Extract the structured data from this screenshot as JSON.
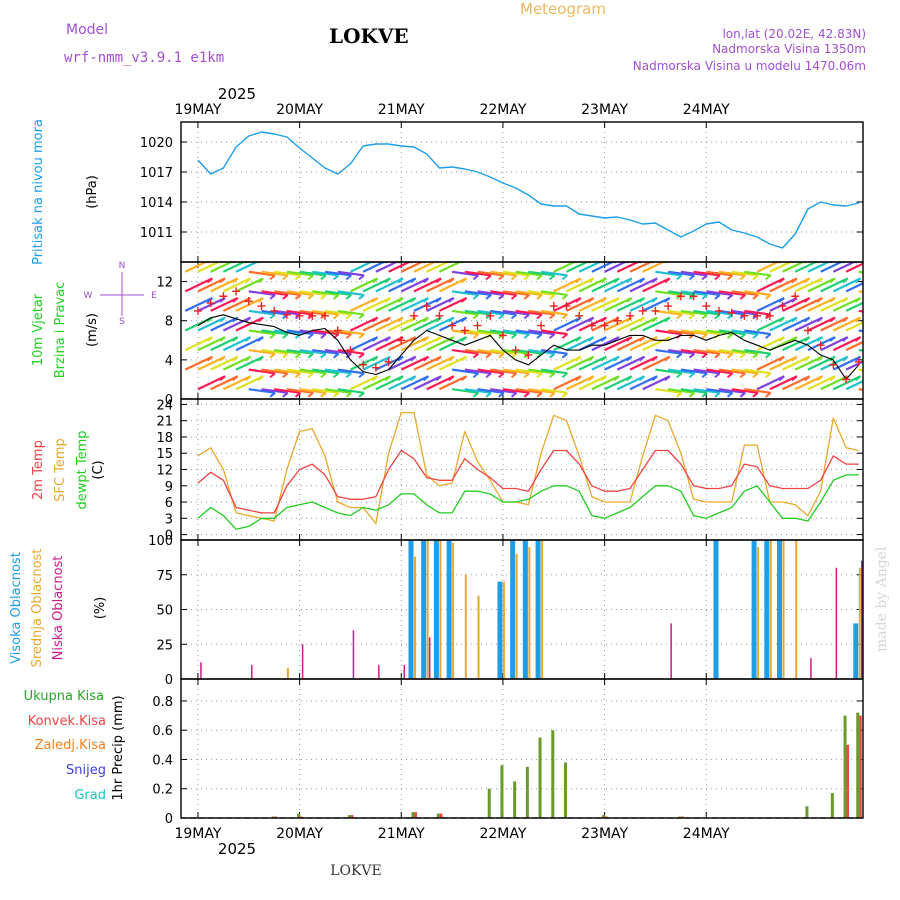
{
  "header": {
    "model_label": "Model",
    "model_name": "wrf-nmm_v3.9.1  e1km",
    "station": "LOKVE",
    "title": "Meteogram",
    "location": "lon,lat (20.02E, 42.83N)",
    "elevation": "Nadmorska Visina 1350m",
    "model_elevation": "Nadmorska Visina u modelu 1470.06m",
    "watermark": "made by Angel",
    "footer_station": "LOKVE",
    "year": "2025"
  },
  "colors": {
    "pressure": "#1e9ee8",
    "temp2m": "#ee4444",
    "sfc": "#e8a830",
    "dewpt": "#22cc22",
    "high_cloud": "#1e9ee8",
    "mid_cloud": "#e8a830",
    "low_cloud": "#cc1a8a",
    "total_precip": "#6a9a2a",
    "conv_precip": "#ee4444",
    "frozen": "#f08020",
    "snow": "#4040dd",
    "grad": "#20c0c0",
    "wind_gust": "#ee2222",
    "model_label": "#a050d0"
  },
  "chart_data": [
    {
      "type": "line",
      "panel": "pressure",
      "ylabel": [
        "Pritisak na nivou mora",
        "(hPa)"
      ],
      "unit": "hPa",
      "yticks": [
        1011,
        1014,
        1017,
        1020
      ],
      "ylim": [
        1008,
        1022
      ],
      "x_days": [
        "19MAY",
        "20MAY",
        "21MAY",
        "22MAY",
        "23MAY",
        "24MAY"
      ],
      "x_hours": [
        0,
        3,
        6,
        9,
        12,
        15,
        18,
        21,
        24,
        27,
        30,
        33,
        36,
        39,
        42,
        45,
        48,
        51,
        54,
        57,
        60,
        63,
        66,
        69,
        72,
        75,
        78,
        81,
        84,
        87,
        90,
        93,
        96,
        99,
        102,
        105,
        108,
        111,
        114,
        117,
        120,
        123,
        126,
        129,
        132,
        135,
        138,
        141,
        144,
        147,
        150,
        153,
        156
      ],
      "series": [
        {
          "values": [
            1018.2,
            1016.8,
            1017.4,
            1019.5,
            1020.6,
            1021.0,
            1020.8,
            1020.5,
            1019.4,
            1018.4,
            1017.4,
            1016.8,
            1017.8,
            1019.6,
            1019.8,
            1019.8,
            1019.6,
            1019.5,
            1018.8,
            1017.4,
            1017.5,
            1017.3,
            1017.0,
            1016.5,
            1015.9,
            1015.4,
            1014.7,
            1013.8,
            1013.6,
            1013.6,
            1012.8,
            1012.6,
            1012.4,
            1012.5,
            1012.2,
            1011.8,
            1011.9,
            1011.2,
            1010.5,
            1011.1,
            1011.8,
            1012.0,
            1011.2,
            1010.9,
            1010.5,
            1009.8,
            1009.4,
            1010.8,
            1013.3,
            1014.0,
            1013.7,
            1013.6,
            1013.9
          ]
        }
      ]
    },
    {
      "type": "line",
      "panel": "wind",
      "ylabel": [
        "10m Vjetar",
        "Brzina i Pravac",
        "(m/s)"
      ],
      "unit": "m/s",
      "yticks": [
        0,
        4,
        8,
        12
      ],
      "ylim": [
        0,
        14
      ],
      "compass": [
        "N",
        "W",
        "E",
        "S"
      ],
      "x_hours": [
        0,
        3,
        6,
        9,
        12,
        15,
        18,
        21,
        24,
        27,
        30,
        33,
        36,
        39,
        42,
        45,
        48,
        51,
        54,
        57,
        60,
        63,
        66,
        69,
        72,
        75,
        78,
        81,
        84,
        87,
        90,
        93,
        96,
        99,
        102,
        105,
        108,
        111,
        114,
        117,
        120,
        123,
        126,
        129,
        132,
        135,
        138,
        141,
        144,
        147,
        150,
        153,
        156
      ],
      "series": [
        {
          "name": "speed",
          "values": [
            7.5,
            8.3,
            8.6,
            8.2,
            7.8,
            7.6,
            7.4,
            6.8,
            6.5,
            7.0,
            7.2,
            6.0,
            4.0,
            2.8,
            2.5,
            3.0,
            4.5,
            6.0,
            7.0,
            6.5,
            6.0,
            5.5,
            6.0,
            6.5,
            5.0,
            4.0,
            3.5,
            4.5,
            5.5,
            5.0,
            5.0,
            5.5,
            5.5,
            6.0,
            6.5,
            6.5,
            6.0,
            6.0,
            6.5,
            6.5,
            6.0,
            6.5,
            6.8,
            6.0,
            5.5,
            5.0,
            5.5,
            6.0,
            5.5,
            4.5,
            4.0,
            2.0,
            3.5
          ]
        },
        {
          "name": "gust",
          "values": [
            9.0,
            9.8,
            10.5,
            11.0,
            10.0,
            9.5,
            9.0,
            8.6,
            8.5,
            8.5,
            8.5,
            7.0,
            5.0,
            3.5,
            3.2,
            3.8,
            6.0,
            8.5,
            9.5,
            8.5,
            7.5,
            7.0,
            7.5,
            8.5,
            6.5,
            5.0,
            4.5,
            7.5,
            9.5,
            9.5,
            8.5,
            7.5,
            7.5,
            8.0,
            8.5,
            9.0,
            9.0,
            9.5,
            10.5,
            10.5,
            9.5,
            9.0,
            8.8,
            8.5,
            8.5,
            8.5,
            9.5,
            10.5,
            7.0,
            5.5,
            3.5,
            2.0,
            3.8
          ]
        }
      ]
    },
    {
      "type": "line",
      "panel": "temperature",
      "ylabel": [
        "2m Temp",
        "SFC Temp",
        "dewpt Temp",
        "(C)"
      ],
      "unit": "C",
      "yticks": [
        0,
        3,
        6,
        9,
        12,
        15,
        18,
        21,
        24
      ],
      "ylim": [
        -1,
        25
      ],
      "x_hours": [
        0,
        3,
        6,
        9,
        12,
        15,
        18,
        21,
        24,
        27,
        30,
        33,
        36,
        39,
        42,
        45,
        48,
        51,
        54,
        57,
        60,
        63,
        66,
        69,
        72,
        75,
        78,
        81,
        84,
        87,
        90,
        93,
        96,
        99,
        102,
        105,
        108,
        111,
        114,
        117,
        120,
        123,
        126,
        129,
        132,
        135,
        138,
        141,
        144,
        147,
        150,
        153,
        156
      ],
      "series": [
        {
          "name": "2m Temp",
          "values": [
            9.5,
            11.5,
            10.0,
            5.0,
            4.5,
            4.0,
            4.0,
            9.0,
            12.0,
            13.0,
            11.0,
            7.0,
            6.5,
            6.5,
            7.0,
            12.0,
            15.5,
            14.0,
            10.5,
            10.0,
            10.0,
            14.0,
            12.0,
            10.5,
            8.5,
            8.5,
            8.0,
            12.0,
            15.5,
            15.5,
            13.0,
            9.0,
            8.0,
            8.0,
            8.5,
            12.0,
            15.5,
            15.5,
            13.0,
            9.0,
            8.5,
            8.5,
            9.0,
            13.0,
            12.5,
            9.0,
            8.5,
            8.5,
            8.5,
            10.0,
            14.5,
            13.0,
            13.0
          ]
        },
        {
          "name": "SFC Temp",
          "values": [
            14.5,
            16.0,
            12.0,
            4.0,
            3.5,
            3.0,
            2.5,
            12.0,
            19.0,
            19.5,
            14.5,
            6.0,
            5.0,
            5.0,
            2.0,
            15.0,
            22.5,
            22.5,
            11.0,
            9.0,
            9.5,
            19.0,
            13.5,
            10.0,
            6.0,
            6.0,
            5.5,
            15.0,
            22.0,
            21.0,
            14.5,
            7.0,
            6.0,
            6.0,
            6.0,
            14.5,
            22.0,
            21.0,
            15.0,
            6.5,
            6.0,
            6.0,
            6.0,
            16.5,
            16.5,
            6.0,
            6.0,
            5.5,
            3.5,
            8.0,
            21.5,
            16.0,
            15.5
          ]
        },
        {
          "name": "dewpt Temp",
          "values": [
            3.0,
            5.0,
            3.5,
            1.0,
            1.5,
            3.0,
            3.0,
            5.0,
            5.5,
            6.0,
            5.0,
            4.0,
            3.5,
            5.0,
            4.5,
            5.5,
            7.5,
            7.5,
            5.5,
            4.0,
            4.0,
            8.0,
            8.0,
            7.5,
            6.0,
            6.0,
            6.5,
            8.0,
            9.0,
            9.0,
            8.0,
            3.5,
            3.0,
            4.0,
            5.0,
            7.0,
            9.0,
            9.0,
            8.0,
            3.5,
            3.0,
            4.0,
            5.0,
            8.0,
            9.0,
            6.0,
            3.0,
            3.0,
            2.5,
            6.0,
            10.0,
            11.0,
            11.0
          ]
        }
      ]
    },
    {
      "type": "bar",
      "panel": "clouds",
      "ylabel": [
        "Visoka Oblacnost",
        "Srednja Oblacnost",
        "Niska Oblacnost",
        "(%)"
      ],
      "unit": "%",
      "yticks": [
        0,
        25,
        50,
        75,
        100
      ],
      "ylim": [
        0,
        100
      ],
      "x_hours": [
        0,
        3,
        6,
        9,
        12,
        15,
        18,
        21,
        24,
        27,
        30,
        33,
        36,
        39,
        42,
        45,
        48,
        51,
        54,
        57,
        60,
        63,
        66,
        69,
        72,
        75,
        78,
        81,
        84,
        87,
        90,
        93,
        96,
        99,
        102,
        105,
        108,
        111,
        114,
        117,
        120,
        123,
        126,
        129,
        132,
        135,
        138,
        141,
        144,
        147,
        150,
        153,
        156
      ],
      "series": [
        {
          "name": "Visoka Oblacnost",
          "values": [
            0,
            0,
            0,
            0,
            0,
            0,
            0,
            0,
            0,
            0,
            0,
            0,
            0,
            0,
            0,
            0,
            0,
            100,
            100,
            100,
            100,
            0,
            0,
            0,
            70,
            100,
            100,
            100,
            0,
            0,
            0,
            0,
            0,
            0,
            0,
            0,
            0,
            0,
            0,
            0,
            0,
            100,
            0,
            0,
            100,
            100,
            100,
            0,
            0,
            0,
            0,
            0,
            40
          ]
        },
        {
          "name": "Srednja Oblacnost",
          "values": [
            0,
            0,
            0,
            0,
            0,
            0,
            0,
            8,
            0,
            0,
            0,
            0,
            0,
            0,
            0,
            0,
            0,
            88,
            100,
            100,
            98,
            75,
            60,
            0,
            70,
            90,
            95,
            100,
            0,
            0,
            0,
            0,
            0,
            0,
            0,
            0,
            0,
            0,
            0,
            0,
            0,
            0,
            0,
            0,
            95,
            100,
            100,
            100,
            0,
            0,
            0,
            0,
            80
          ]
        },
        {
          "name": "Niska Oblacnost",
          "values": [
            12,
            0,
            0,
            0,
            10,
            0,
            0,
            0,
            25,
            0,
            0,
            0,
            35,
            0,
            10,
            0,
            10,
            0,
            30,
            0,
            0,
            0,
            0,
            0,
            0,
            0,
            0,
            0,
            0,
            0,
            0,
            0,
            0,
            0,
            0,
            0,
            0,
            40,
            0,
            0,
            0,
            0,
            0,
            0,
            0,
            0,
            0,
            0,
            15,
            0,
            80,
            0,
            85
          ]
        }
      ]
    },
    {
      "type": "bar",
      "panel": "precipitation",
      "ylabel": [
        "1hr Precip (mm)"
      ],
      "unit": "mm",
      "legend": [
        "Ukupna Kisa",
        "Konvek.Kisa",
        "Zaledj.Kisa",
        "Snijeg",
        "Grad"
      ],
      "yticks": [
        0,
        0.2,
        0.4,
        0.6,
        0.8
      ],
      "ylim": [
        0,
        0.95
      ],
      "x_hours": [
        0,
        3,
        6,
        9,
        12,
        15,
        18,
        21,
        24,
        27,
        30,
        33,
        36,
        39,
        42,
        45,
        48,
        51,
        54,
        57,
        60,
        63,
        66,
        69,
        72,
        75,
        78,
        81,
        84,
        87,
        90,
        93,
        96,
        99,
        102,
        105,
        108,
        111,
        114,
        117,
        120,
        123,
        126,
        129,
        132,
        135,
        138,
        141,
        144,
        147,
        150,
        153,
        156
      ],
      "series": [
        {
          "name": "Ukupna Kisa",
          "values": [
            0,
            0,
            0,
            0,
            0,
            0,
            0.01,
            0,
            0.03,
            0,
            0,
            0,
            0.02,
            0,
            0,
            0,
            0,
            0.04,
            0,
            0.03,
            0,
            0,
            0,
            0.2,
            0.36,
            0.25,
            0.35,
            0.55,
            0.6,
            0.38,
            0,
            0,
            0.02,
            0,
            0,
            0,
            0,
            0,
            0.01,
            0,
            0,
            0,
            0,
            0,
            0,
            0,
            0,
            0,
            0.08,
            0,
            0.17,
            0.7,
            0.72
          ]
        },
        {
          "name": "Konvek.Kisa",
          "values": [
            0,
            0,
            0,
            0,
            0,
            0,
            0.01,
            0,
            0.01,
            0,
            0,
            0,
            0.02,
            0,
            0,
            0,
            0,
            0.04,
            0,
            0.03,
            0,
            0,
            0,
            0,
            0,
            0,
            0,
            0,
            0,
            0,
            0,
            0,
            0.01,
            0,
            0,
            0,
            0,
            0,
            0.01,
            0,
            0,
            0,
            0,
            0,
            0,
            0,
            0,
            0,
            0,
            0,
            0,
            0.5,
            0.7
          ]
        }
      ]
    }
  ]
}
